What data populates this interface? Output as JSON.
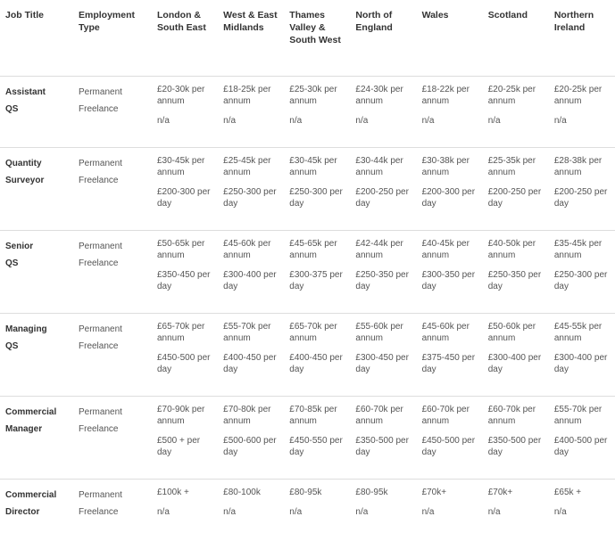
{
  "columns": [
    "Job Title",
    "Employment Type",
    "London & South East",
    "West & East Midlands",
    "Thames Valley & South West",
    "North of England",
    "Wales",
    "Scotland",
    "Northern Ireland"
  ],
  "rows": [
    {
      "title": "Assistant QS",
      "perm": [
        "£20-30k per annum",
        "£18-25k per annum",
        "£25-30k per annum",
        "£24-30k per annum",
        "£18-22k per annum",
        "£20-25k per annum",
        "£20-25k per annum"
      ],
      "free": [
        "n/a",
        "n/a",
        "n/a",
        "n/a",
        "n/a",
        "n/a",
        "n/a"
      ]
    },
    {
      "title": "Quantity Surveyor",
      "perm": [
        "£30-45k per annum",
        "£25-45k per annum",
        "£30-45k per annum",
        "£30-44k per annum",
        "£30-38k per annum",
        "£25-35k per annum",
        "£28-38k per annum"
      ],
      "free": [
        "£200-300 per day",
        "£250-300 per day",
        "£250-300 per day",
        "£200-250 per day",
        "£200-300 per day",
        "£200-250 per day",
        "£200-250 per day"
      ]
    },
    {
      "title": "Senior QS",
      "perm": [
        "£50-65k per annum",
        "£45-60k per annum",
        "£45-65k per annum",
        "£42-44k per annum",
        "£40-45k per annum",
        "£40-50k per annum",
        "£35-45k per annum"
      ],
      "free": [
        "£350-450 per day",
        "£300-400 per day",
        "£300-375 per day",
        "£250-350 per day",
        "£300-350 per day",
        "£250-350 per day",
        "£250-300 per day"
      ]
    },
    {
      "title": "Managing QS",
      "perm": [
        "£65-70k per annum",
        "£55-70k per annum",
        "£65-70k per annum",
        "£55-60k per annum",
        "£45-60k per annum",
        "£50-60k per annum",
        "£45-55k per annum"
      ],
      "free": [
        "£450-500 per day",
        "£400-450 per day",
        "£400-450 per day",
        "£300-450 per day",
        "£375-450 per day",
        "£300-400 per day",
        "£300-400 per day"
      ]
    },
    {
      "title": "Commercial Manager",
      "perm": [
        "£70-90k per annum",
        "£70-80k per annum",
        "£70-85k per annum",
        "£60-70k per annum",
        "£60-70k per annum",
        "£60-70k per annum",
        "£55-70k per annum"
      ],
      "free": [
        "£500 + per day",
        "£500-600 per day",
        "£450-550 per day",
        "£350-500 per day",
        "£450-500 per day",
        "£350-500 per day",
        "£400-500 per day"
      ]
    },
    {
      "title": "Commercial Director",
      "perm": [
        "£100k +",
        "£80-100k",
        "£80-95k",
        "£80-95k",
        "£70k+",
        "£70k+",
        "£65k +"
      ],
      "free": [
        "n/a",
        "n/a",
        "n/a",
        "n/a",
        "n/a",
        "n/a",
        "n/a"
      ]
    }
  ],
  "employment": {
    "perm": "Permanent",
    "free": "Freelance"
  }
}
